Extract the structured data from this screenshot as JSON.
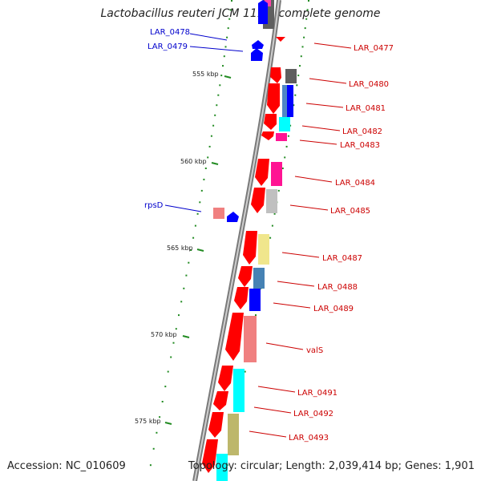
{
  "title": "Lactobacillus reuteri JCM 1112, complete genome",
  "accession_label": "Accession: NC_010609",
  "topology_label": "Topology: circular; Length: 2,039,414 bp; Genes: 1,901",
  "colors": {
    "forward_label": "#0000cc",
    "reverse_label": "#cc0000",
    "scale_tick": "#228B22",
    "backbone": "#808080"
  },
  "scale_ticks": [
    {
      "label": "555 kbp"
    },
    {
      "label": "560 kbp"
    },
    {
      "label": "565 kbp"
    },
    {
      "label": "570 kbp"
    },
    {
      "label": "575 kbp"
    }
  ],
  "forward_labels": [
    {
      "id": "LAR_0478",
      "label": "LAR_0478"
    },
    {
      "id": "LAR_0479",
      "label": "LAR_0479"
    },
    {
      "id": "rpsD",
      "label": "rpsD"
    }
  ],
  "reverse_labels": [
    {
      "id": "LAR_0477",
      "label": "LAR_0477"
    },
    {
      "id": "LAR_0480",
      "label": "LAR_0480"
    },
    {
      "id": "LAR_0481",
      "label": "LAR_0481"
    },
    {
      "id": "LAR_0482",
      "label": "LAR_0482"
    },
    {
      "id": "LAR_0483",
      "label": "LAR_0483"
    },
    {
      "id": "LAR_0484",
      "label": "LAR_0484"
    },
    {
      "id": "LAR_0485",
      "label": "LAR_0485"
    },
    {
      "id": "LAR_0487",
      "label": "LAR_0487"
    },
    {
      "id": "LAR_0488",
      "label": "LAR_0488"
    },
    {
      "id": "LAR_0489",
      "label": "LAR_0489"
    },
    {
      "id": "valS",
      "label": "valS"
    },
    {
      "id": "LAR_0491",
      "label": "LAR_0491"
    },
    {
      "id": "LAR_0492",
      "label": "LAR_0492"
    },
    {
      "id": "LAR_0493",
      "label": "LAR_0493"
    }
  ]
}
